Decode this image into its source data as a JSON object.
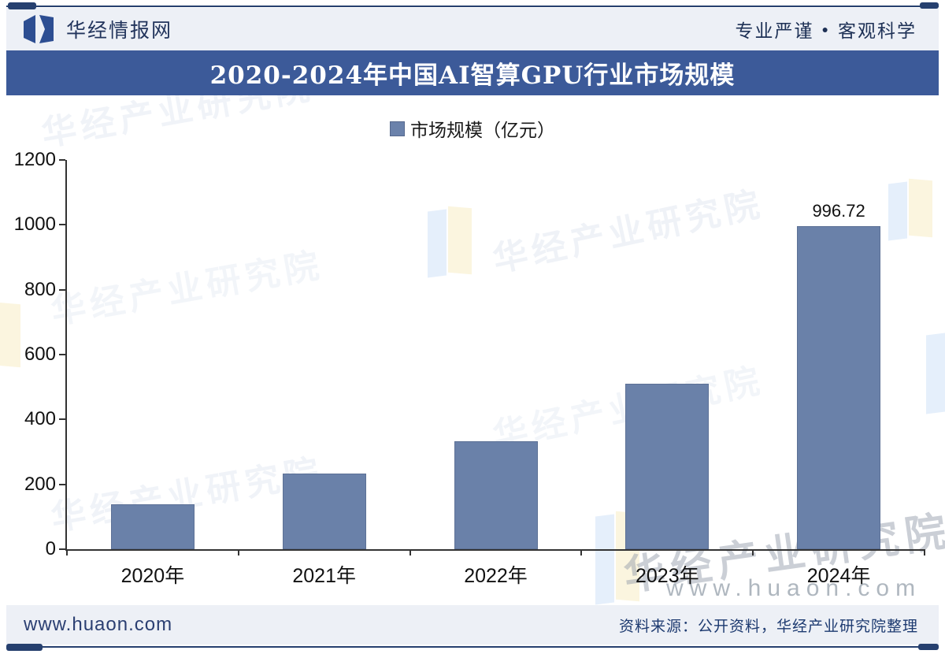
{
  "header": {
    "brand": "华经情报网",
    "slogan_left": "专业严谨",
    "slogan_bullet": "●",
    "slogan_right": "客观科学"
  },
  "title": "2020-2024年中国AI智算GPU行业市场规模",
  "legend_label": "市场规模（亿元）",
  "chart_data": {
    "type": "bar",
    "title": "2020-2024年中国AI智算GPU行业市场规模",
    "categories": [
      "2020年",
      "2021年",
      "2022年",
      "2023年",
      "2024年"
    ],
    "values": [
      138,
      233,
      334,
      510,
      996.72
    ],
    "value_labels": [
      "",
      "",
      "",
      "",
      "996.72"
    ],
    "legend": [
      "市场规模（亿元）"
    ],
    "legend_position": "top-center",
    "ylabel": "",
    "xlabel": "",
    "ylim": [
      0,
      1200
    ],
    "yticks": [
      0,
      200,
      400,
      600,
      800,
      1000,
      1200
    ],
    "grid": false,
    "bar_color": "#6a81a9"
  },
  "watermarks": {
    "diagonal_text": "华经产业研究院",
    "bottom_text": "华经产业研究院",
    "bottom_site": "www.huaon.com"
  },
  "footer": {
    "site": "www.huaon.com",
    "source": "资料来源：公开资料，华经产业研究院整理"
  },
  "colors": {
    "title_bar": "#3c5a99",
    "bar": "#6a81a9",
    "navy_text": "#1d3a70",
    "panel_bg": "#edf0f6",
    "rule": "#26406f"
  }
}
